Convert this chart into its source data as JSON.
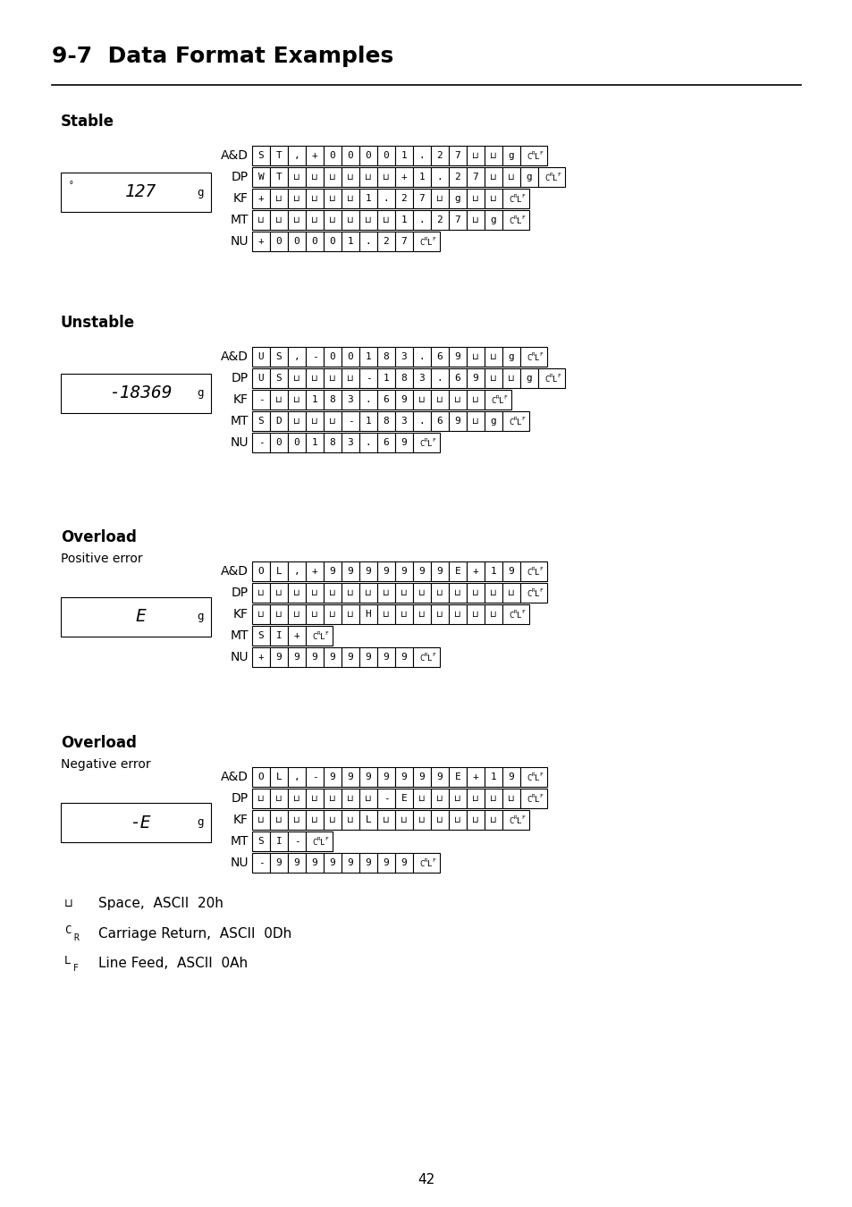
{
  "title": "9-7  Data Format Examples",
  "bg_color": "#ffffff",
  "page_number": "42",
  "sections": [
    {
      "label": "Stable",
      "sublabel": "",
      "display": "127",
      "display_prefix": "°",
      "display_suffix": "g",
      "formats": [
        {
          "name": "A&D",
          "cells": [
            "S",
            "T",
            ",",
            "+",
            "0",
            "0",
            "0",
            "0",
            "1",
            ".",
            "2",
            "7",
            "_",
            "_",
            "g",
            "CRLF"
          ]
        },
        {
          "name": "DP",
          "cells": [
            "W",
            "T",
            "_",
            "_",
            "_",
            "_",
            "_",
            "_",
            "+",
            "1",
            ".",
            "2",
            "7",
            "_",
            "_",
            "g",
            "CRLF"
          ]
        },
        {
          "name": "KF",
          "cells": [
            "+",
            "_",
            "_",
            "_",
            "_",
            "_",
            "1",
            ".",
            "2",
            "7",
            "_",
            "g",
            "_",
            "_",
            "CRLF"
          ]
        },
        {
          "name": "MT",
          "cells": [
            "_",
            "_",
            "_",
            "_",
            "_",
            "_",
            "_",
            "_",
            "1",
            ".",
            "2",
            "7",
            "_",
            "g",
            "CRLF"
          ]
        },
        {
          "name": "NU",
          "cells": [
            "+",
            "0",
            "0",
            "0",
            "0",
            "1",
            ".",
            "2",
            "7",
            "CRLF"
          ]
        }
      ]
    },
    {
      "label": "Unstable",
      "sublabel": "",
      "display": "-18369",
      "display_prefix": "",
      "display_suffix": "g",
      "formats": [
        {
          "name": "A&D",
          "cells": [
            "U",
            "S",
            ",",
            "-",
            "0",
            "0",
            "1",
            "8",
            "3",
            ".",
            "6",
            "9",
            "_",
            "_",
            "g",
            "CRLF"
          ]
        },
        {
          "name": "DP",
          "cells": [
            "U",
            "S",
            "_",
            "_",
            "_",
            "_",
            "-",
            "1",
            "8",
            "3",
            ".",
            "6",
            "9",
            "_",
            "_",
            "g",
            "CRLF"
          ]
        },
        {
          "name": "KF",
          "cells": [
            "-",
            "_",
            "_",
            "1",
            "8",
            "3",
            ".",
            "6",
            "9",
            "_",
            "_",
            "_",
            "_",
            "CRLF"
          ]
        },
        {
          "name": "MT",
          "cells": [
            "S",
            "D",
            "_",
            "_",
            "_",
            "-",
            "1",
            "8",
            "3",
            ".",
            "6",
            "9",
            "_",
            "g",
            "CRLF"
          ]
        },
        {
          "name": "NU",
          "cells": [
            "-",
            "0",
            "0",
            "1",
            "8",
            "3",
            ".",
            "6",
            "9",
            "CRLF"
          ]
        }
      ]
    },
    {
      "label": "Overload",
      "sublabel": "Positive error",
      "display": "E",
      "display_prefix": "",
      "display_suffix": "g",
      "formats": [
        {
          "name": "A&D",
          "cells": [
            "O",
            "L",
            ",",
            "+",
            "9",
            "9",
            "9",
            "9",
            "9",
            "9",
            "9",
            "E",
            "+",
            "1",
            "9",
            "CRLF"
          ]
        },
        {
          "name": "DP",
          "cells": [
            "_",
            "_",
            "_",
            "_",
            "_",
            "_",
            "_",
            "_",
            "_",
            "_",
            "_",
            "_",
            "_",
            "_",
            "_",
            "CRLF"
          ]
        },
        {
          "name": "KF",
          "cells": [
            "_",
            "_",
            "_",
            "_",
            "_",
            "_",
            "H",
            "_",
            "_",
            "_",
            "_",
            "_",
            "_",
            "_",
            "CRLF"
          ]
        },
        {
          "name": "MT",
          "cells": [
            "S",
            "I",
            "+",
            "CRLF"
          ]
        },
        {
          "name": "NU",
          "cells": [
            "+",
            "9",
            "9",
            "9",
            "9",
            "9",
            "9",
            "9",
            "9",
            "CRLF"
          ]
        }
      ]
    },
    {
      "label": "Overload",
      "sublabel": "Negative error",
      "display": "-E",
      "display_prefix": "",
      "display_suffix": "g",
      "formats": [
        {
          "name": "A&D",
          "cells": [
            "O",
            "L",
            ",",
            "-",
            "9",
            "9",
            "9",
            "9",
            "9",
            "9",
            "9",
            "E",
            "+",
            "1",
            "9",
            "CRLF"
          ]
        },
        {
          "name": "DP",
          "cells": [
            "_",
            "_",
            "_",
            "_",
            "_",
            "_",
            "_",
            "-",
            "E",
            "_",
            "_",
            "_",
            "_",
            "_",
            "_",
            "CRLF"
          ]
        },
        {
          "name": "KF",
          "cells": [
            "_",
            "_",
            "_",
            "_",
            "_",
            "_",
            "L",
            "_",
            "_",
            "_",
            "_",
            "_",
            "_",
            "_",
            "CRLF"
          ]
        },
        {
          "name": "MT",
          "cells": [
            "S",
            "I",
            "-",
            "CRLF"
          ]
        },
        {
          "name": "NU",
          "cells": [
            "-",
            "9",
            "9",
            "9",
            "9",
            "9",
            "9",
            "9",
            "9",
            "CRLF"
          ]
        }
      ]
    }
  ]
}
